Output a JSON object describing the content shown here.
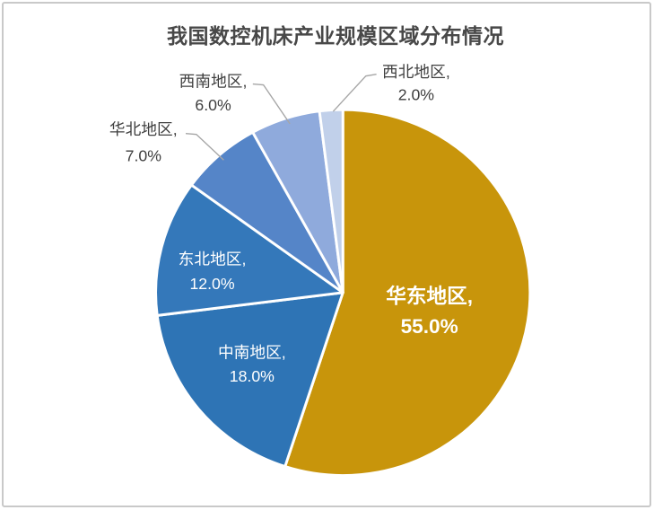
{
  "page": {
    "background_color": "#FFFFFF",
    "frame_border_color": "#C9C9C9"
  },
  "chart_data": {
    "type": "pie",
    "title": "我国数控机床产业规模区域分布情况",
    "title_color": "#484848",
    "direction": "clockwise",
    "start_angle_deg": 0,
    "value_suffix": "%",
    "value_decimals": 1,
    "total": 100,
    "legend": "none",
    "leader_line_color": "#A6A6A6",
    "slice_border_color": "#FFFFFF",
    "slices": [
      {
        "key": "east-china",
        "name": "华东地区",
        "value": 55.0,
        "color": "#C8950B",
        "label_color": "#FFFFFF",
        "label_position": "inside",
        "label_text": "华东地区, 55.0%"
      },
      {
        "key": "central-south",
        "name": "中南地区",
        "value": 18.0,
        "color": "#2E74B5",
        "label_color": "#FFFFFF",
        "label_position": "inside",
        "label_text": "中南地区, 18.0%"
      },
      {
        "key": "northeast",
        "name": "东北地区",
        "value": 12.0,
        "color": "#3478BA",
        "label_color": "#FFFFFF",
        "label_position": "inside",
        "label_text": "东北地区, 12.0%"
      },
      {
        "key": "north-china",
        "name": "华北地区",
        "value": 7.0,
        "color": "#5585C8",
        "label_color": "#404040",
        "label_position": "outside",
        "label_text": "华北地区, 7.0%"
      },
      {
        "key": "southwest",
        "name": "西南地区",
        "value": 6.0,
        "color": "#8FAADC",
        "label_color": "#404040",
        "label_position": "outside",
        "label_text": "西南地区, 6.0%"
      },
      {
        "key": "northwest",
        "name": "西北地区",
        "value": 2.0,
        "color": "#C1D0EA",
        "label_color": "#404040",
        "label_position": "outside",
        "label_text": "西北地区, 2.0%"
      }
    ]
  }
}
